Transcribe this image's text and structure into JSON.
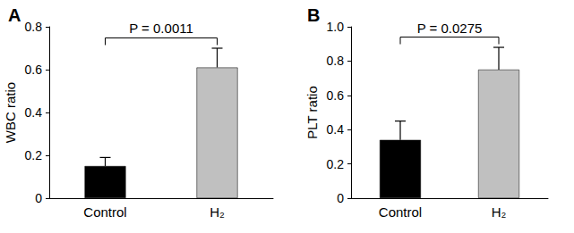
{
  "chart_data": [
    {
      "type": "bar",
      "title": "A",
      "y_label": "WBC ratio",
      "categories": [
        "Control",
        "H₂"
      ],
      "values": [
        0.15,
        0.61
      ],
      "errors": [
        0.04,
        0.09
      ],
      "colors": [
        "#000000",
        "#c0c0c0"
      ],
      "ylim": [
        0,
        0.8
      ],
      "yticks": [
        0,
        0.2,
        0.4,
        0.6,
        0.8
      ],
      "grid": false,
      "annotation": "P = 0.0011"
    },
    {
      "type": "bar",
      "title": "B",
      "y_label": "PLT ratio",
      "categories": [
        "Control",
        "H₂"
      ],
      "values": [
        0.34,
        0.75
      ],
      "errors": [
        0.11,
        0.13
      ],
      "colors": [
        "#000000",
        "#c0c0c0"
      ],
      "ylim": [
        0,
        1
      ],
      "yticks": [
        0,
        0.2,
        0.4,
        0.6,
        0.8,
        {
          "value": 1,
          "label": "1.0"
        }
      ],
      "grid": false,
      "annotation": "P = 0.0275"
    }
  ]
}
